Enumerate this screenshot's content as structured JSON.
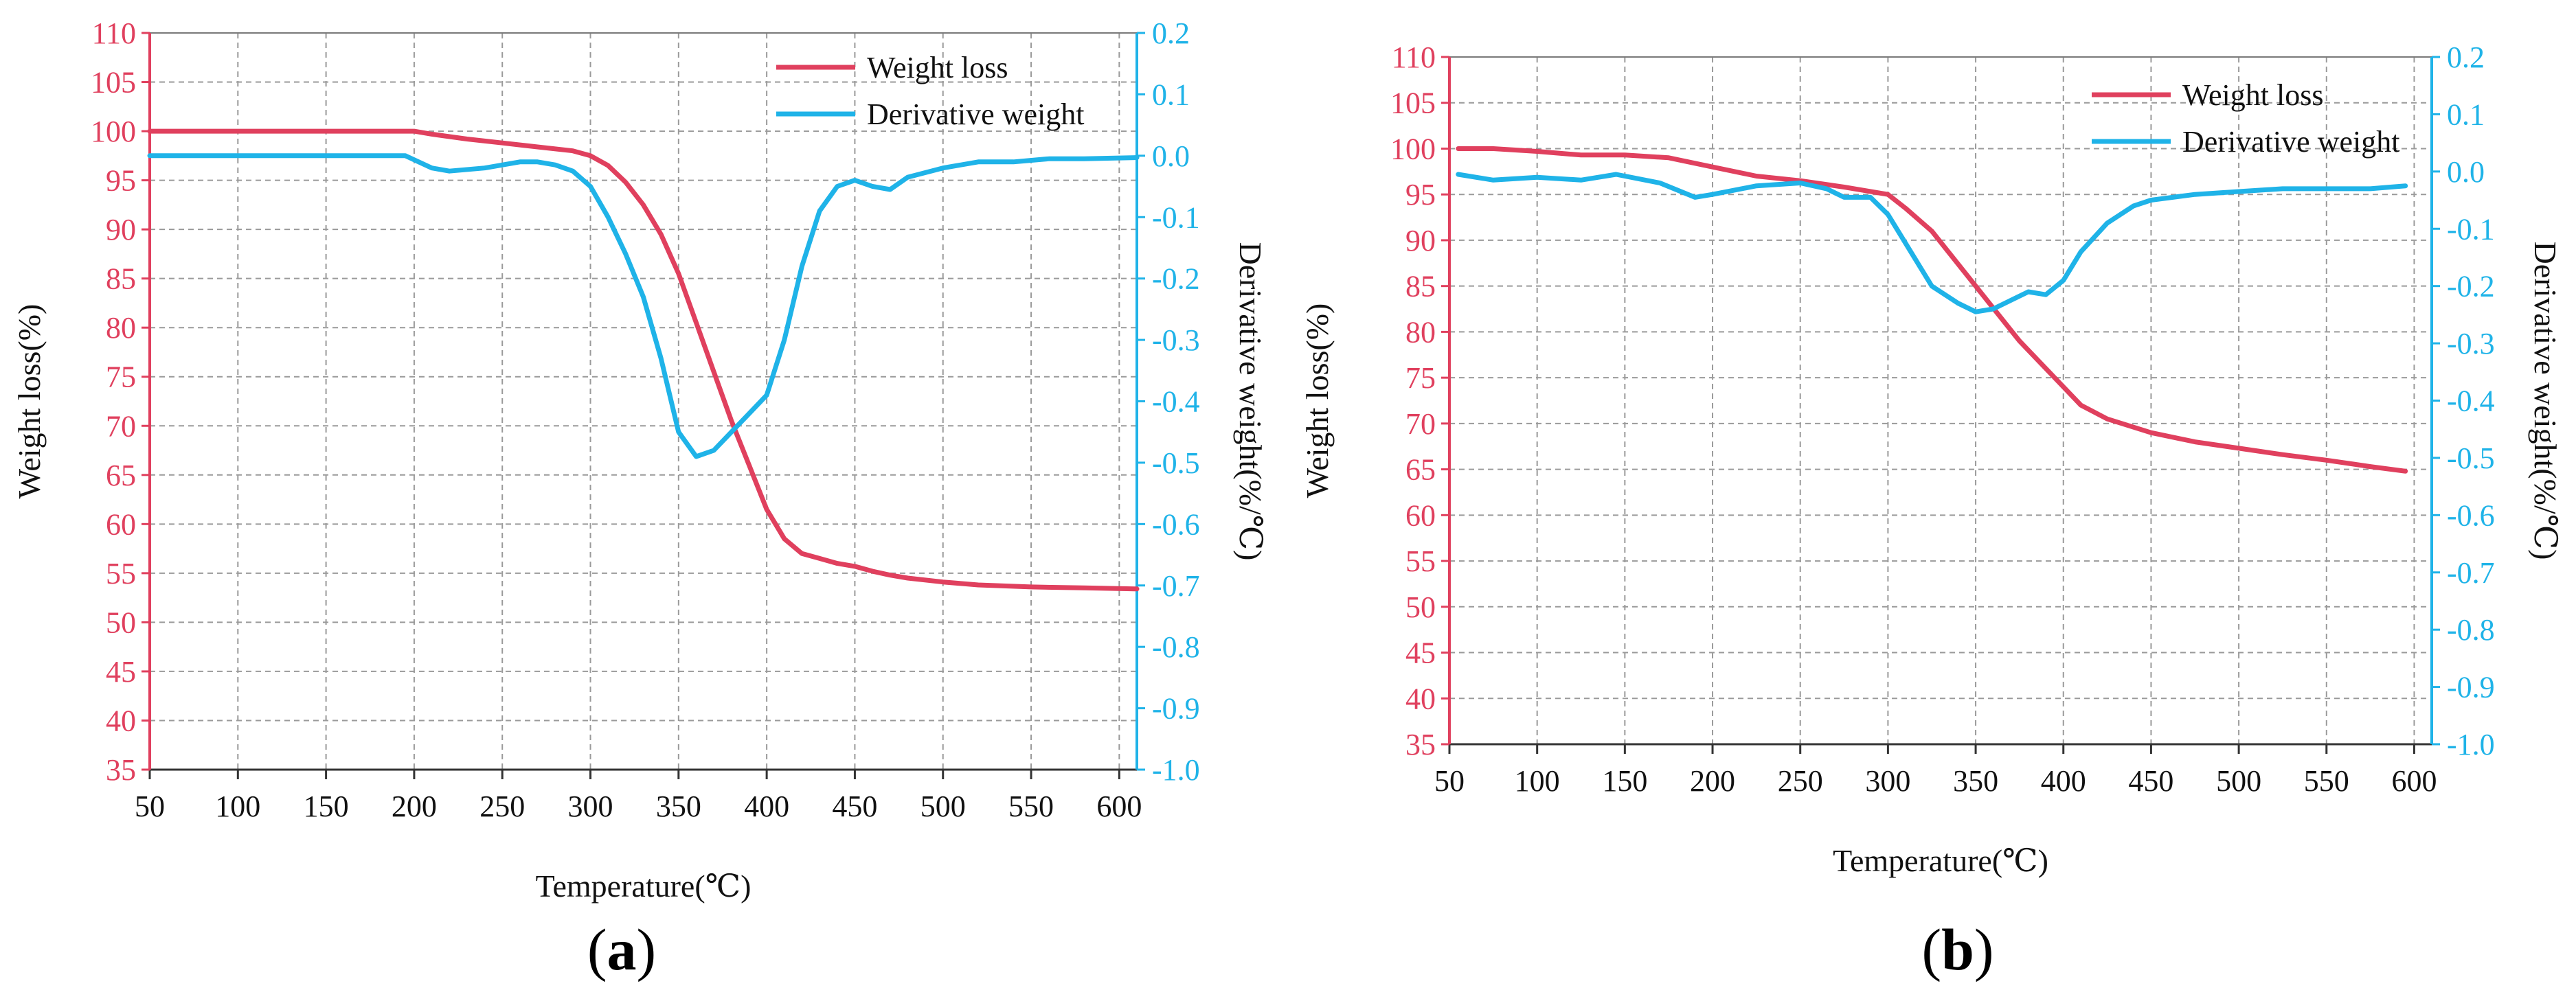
{
  "chart_data": [
    {
      "panel_label": "a",
      "type": "line",
      "xlabel": "Temperature(℃)",
      "ylabel": "Weight loss(%)",
      "y2label": "Derivative weight(%/℃)",
      "xlim": [
        50,
        610
      ],
      "ylim": [
        35,
        110
      ],
      "y2lim": [
        -1.0,
        0.2
      ],
      "x_ticks": [
        50,
        100,
        150,
        200,
        250,
        300,
        350,
        400,
        450,
        500,
        550,
        600
      ],
      "y_ticks": [
        35,
        40,
        45,
        50,
        55,
        60,
        65,
        70,
        75,
        80,
        85,
        90,
        95,
        100,
        105,
        110
      ],
      "y2_ticks": [
        "-1.0",
        "-0.9",
        "-0.8",
        "-0.7",
        "-0.6",
        "-0.5",
        "-0.4",
        "-0.3",
        "-0.2",
        "-0.1",
        "0.0",
        "0.1",
        "0.2"
      ],
      "grid": true,
      "legend_position": "top-right",
      "colors": {
        "weight": "#e0405e",
        "derivative": "#1fb3e8",
        "left_axis": "#e0405e",
        "right_axis": "#1fb3e8"
      },
      "series": [
        {
          "name": "Weight loss",
          "axis": "left",
          "x": [
            50,
            100,
            150,
            200,
            210,
            230,
            250,
            270,
            290,
            300,
            310,
            320,
            330,
            340,
            350,
            360,
            370,
            380,
            390,
            400,
            410,
            420,
            430,
            440,
            450,
            460,
            470,
            480,
            500,
            520,
            550,
            580,
            610
          ],
          "y": [
            100,
            100,
            100,
            100,
            99.7,
            99.2,
            98.8,
            98.4,
            98.0,
            97.5,
            96.5,
            94.8,
            92.5,
            89.5,
            85.5,
            80.5,
            75.5,
            70.5,
            66,
            61.5,
            58.5,
            57.0,
            56.5,
            56.0,
            55.7,
            55.2,
            54.8,
            54.5,
            54.1,
            53.8,
            53.6,
            53.5,
            53.4
          ]
        },
        {
          "name": "Derivative weight",
          "axis": "right",
          "x": [
            50,
            100,
            150,
            195,
            210,
            220,
            240,
            260,
            270,
            280,
            290,
            300,
            310,
            320,
            330,
            340,
            350,
            360,
            370,
            380,
            390,
            400,
            410,
            420,
            430,
            440,
            450,
            460,
            470,
            480,
            500,
            520,
            540,
            560,
            580,
            610
          ],
          "y": [
            0.0,
            0.0,
            0.0,
            0.0,
            -0.02,
            -0.025,
            -0.02,
            -0.01,
            -0.01,
            -0.015,
            -0.025,
            -0.05,
            -0.1,
            -0.16,
            -0.23,
            -0.33,
            -0.45,
            -0.49,
            -0.48,
            -0.45,
            -0.42,
            -0.39,
            -0.3,
            -0.18,
            -0.09,
            -0.05,
            -0.04,
            -0.05,
            -0.055,
            -0.035,
            -0.02,
            -0.01,
            -0.01,
            -0.005,
            -0.005,
            -0.003
          ]
        }
      ]
    },
    {
      "panel_label": "b",
      "type": "line",
      "xlabel": "Temperature(℃)",
      "ylabel": "Weight loss(%)",
      "y2label": "Derivative weight(%/℃)",
      "xlim": [
        50,
        610
      ],
      "ylim": [
        35,
        110
      ],
      "y2lim": [
        -1.0,
        0.2
      ],
      "x_ticks": [
        50,
        100,
        150,
        200,
        250,
        300,
        350,
        400,
        450,
        500,
        550,
        600
      ],
      "y_ticks": [
        35,
        40,
        45,
        50,
        55,
        60,
        65,
        70,
        75,
        80,
        85,
        90,
        95,
        100,
        105,
        110
      ],
      "y2_ticks": [
        "-1.0",
        "-0.9",
        "-0.8",
        "-0.7",
        "-0.6",
        "-0.5",
        "-0.4",
        "-0.3",
        "-0.2",
        "-0.1",
        "0.0",
        "0.1",
        "0.2"
      ],
      "grid": true,
      "legend_position": "top-right",
      "colors": {
        "weight": "#e0405e",
        "derivative": "#1fb3e8",
        "left_axis": "#e0405e",
        "right_axis": "#1fb3e8"
      },
      "series": [
        {
          "name": "Weight loss",
          "axis": "left",
          "x": [
            55,
            75,
            100,
            125,
            150,
            175,
            200,
            225,
            250,
            275,
            300,
            310,
            325,
            350,
            375,
            400,
            410,
            425,
            450,
            475,
            500,
            525,
            550,
            575,
            595
          ],
          "y": [
            100,
            100,
            99.7,
            99.3,
            99.3,
            99.0,
            98.0,
            97.0,
            96.5,
            95.8,
            95.0,
            93.5,
            91.0,
            85.0,
            79.0,
            74.0,
            72.0,
            70.5,
            69.0,
            68.0,
            67.3,
            66.6,
            66.0,
            65.3,
            64.8
          ]
        },
        {
          "name": "Derivative weight",
          "axis": "right",
          "x": [
            55,
            75,
            100,
            125,
            145,
            170,
            190,
            200,
            225,
            250,
            265,
            275,
            290,
            300,
            315,
            325,
            340,
            350,
            360,
            370,
            380,
            390,
            400,
            410,
            425,
            440,
            450,
            475,
            500,
            525,
            550,
            575,
            595
          ],
          "y": [
            -0.005,
            -0.015,
            -0.01,
            -0.015,
            -0.005,
            -0.02,
            -0.045,
            -0.04,
            -0.025,
            -0.02,
            -0.03,
            -0.045,
            -0.045,
            -0.075,
            -0.15,
            -0.2,
            -0.23,
            -0.245,
            -0.24,
            -0.225,
            -0.21,
            -0.215,
            -0.19,
            -0.14,
            -0.09,
            -0.06,
            -0.05,
            -0.04,
            -0.035,
            -0.03,
            -0.03,
            -0.03,
            -0.025
          ]
        }
      ]
    }
  ]
}
